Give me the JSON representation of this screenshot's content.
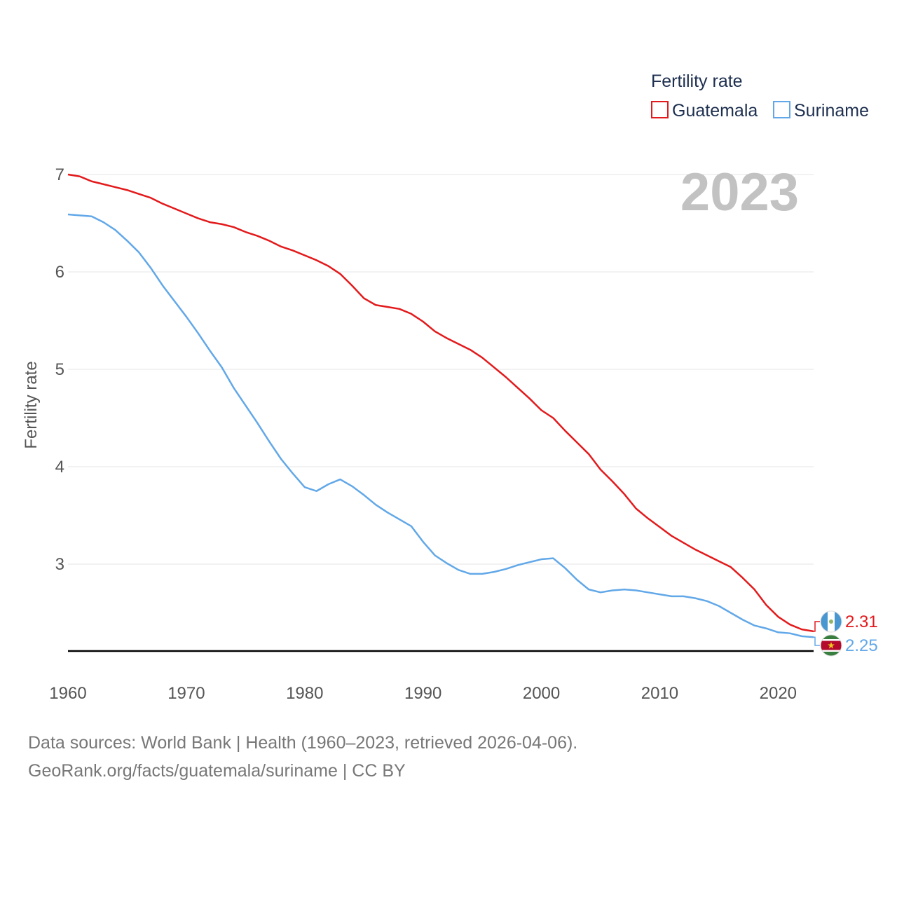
{
  "chart_data": {
    "type": "line",
    "title": "",
    "current_year": "2023",
    "ylabel": "Fertility rate",
    "xlabel": "",
    "xlim": [
      1960,
      2023
    ],
    "ylim": [
      2.1,
      7.1
    ],
    "yticks": [
      3,
      4,
      5,
      6,
      7
    ],
    "ytick_labels": [
      "3",
      "4",
      "5",
      "6",
      "7"
    ],
    "xticks": [
      1960,
      1970,
      1980,
      1990,
      2000,
      2010,
      2020
    ],
    "xtick_labels": [
      "1960",
      "1970",
      "1980",
      "1990",
      "2000",
      "2010",
      "2020"
    ],
    "legend": {
      "title": "Fertility rate",
      "position": "top-right"
    },
    "x": [
      1960,
      1961,
      1962,
      1963,
      1964,
      1965,
      1966,
      1967,
      1968,
      1969,
      1970,
      1971,
      1972,
      1973,
      1974,
      1975,
      1976,
      1977,
      1978,
      1979,
      1980,
      1981,
      1982,
      1983,
      1984,
      1985,
      1986,
      1987,
      1988,
      1989,
      1990,
      1991,
      1992,
      1993,
      1994,
      1995,
      1996,
      1997,
      1998,
      1999,
      2000,
      2001,
      2002,
      2003,
      2004,
      2005,
      2006,
      2007,
      2008,
      2009,
      2010,
      2011,
      2012,
      2013,
      2014,
      2015,
      2016,
      2017,
      2018,
      2019,
      2020,
      2021,
      2022,
      2023
    ],
    "series": [
      {
        "name": "Guatemala",
        "color": "#e31a1c",
        "end_label": "2.31",
        "values": [
          7.0,
          6.98,
          6.93,
          6.9,
          6.87,
          6.84,
          6.8,
          6.76,
          6.7,
          6.65,
          6.6,
          6.55,
          6.51,
          6.49,
          6.46,
          6.41,
          6.37,
          6.32,
          6.26,
          6.22,
          6.17,
          6.12,
          6.06,
          5.98,
          5.86,
          5.73,
          5.66,
          5.64,
          5.62,
          5.57,
          5.49,
          5.39,
          5.32,
          5.26,
          5.2,
          5.12,
          5.02,
          4.92,
          4.81,
          4.7,
          4.58,
          4.5,
          4.37,
          4.25,
          4.13,
          3.97,
          3.85,
          3.72,
          3.57,
          3.47,
          3.38,
          3.29,
          3.22,
          3.15,
          3.09,
          3.03,
          2.97,
          2.86,
          2.74,
          2.58,
          2.46,
          2.38,
          2.33,
          2.31
        ]
      },
      {
        "name": "Suriname",
        "color": "#62a8e8",
        "end_label": "2.25",
        "values": [
          6.59,
          6.58,
          6.57,
          6.51,
          6.43,
          6.32,
          6.2,
          6.04,
          5.86,
          5.7,
          5.54,
          5.37,
          5.19,
          5.02,
          4.81,
          4.63,
          4.45,
          4.26,
          4.08,
          3.93,
          3.79,
          3.75,
          3.82,
          3.87,
          3.8,
          3.71,
          3.61,
          3.53,
          3.46,
          3.39,
          3.23,
          3.09,
          3.01,
          2.94,
          2.9,
          2.9,
          2.92,
          2.95,
          2.99,
          3.02,
          3.05,
          3.06,
          2.96,
          2.84,
          2.74,
          2.71,
          2.73,
          2.74,
          2.73,
          2.71,
          2.69,
          2.67,
          2.67,
          2.65,
          2.62,
          2.57,
          2.5,
          2.43,
          2.37,
          2.34,
          2.3,
          2.29,
          2.26,
          2.25
        ]
      }
    ]
  },
  "flags": {
    "guatemala": "guatemala-flag-icon",
    "suriname": "suriname-flag-icon"
  },
  "footer": {
    "line1": "Data sources: World Bank | Health (1960–2023, retrieved 2026-04-06).",
    "line2": "GeoRank.org/facts/guatemala/suriname | CC BY"
  }
}
